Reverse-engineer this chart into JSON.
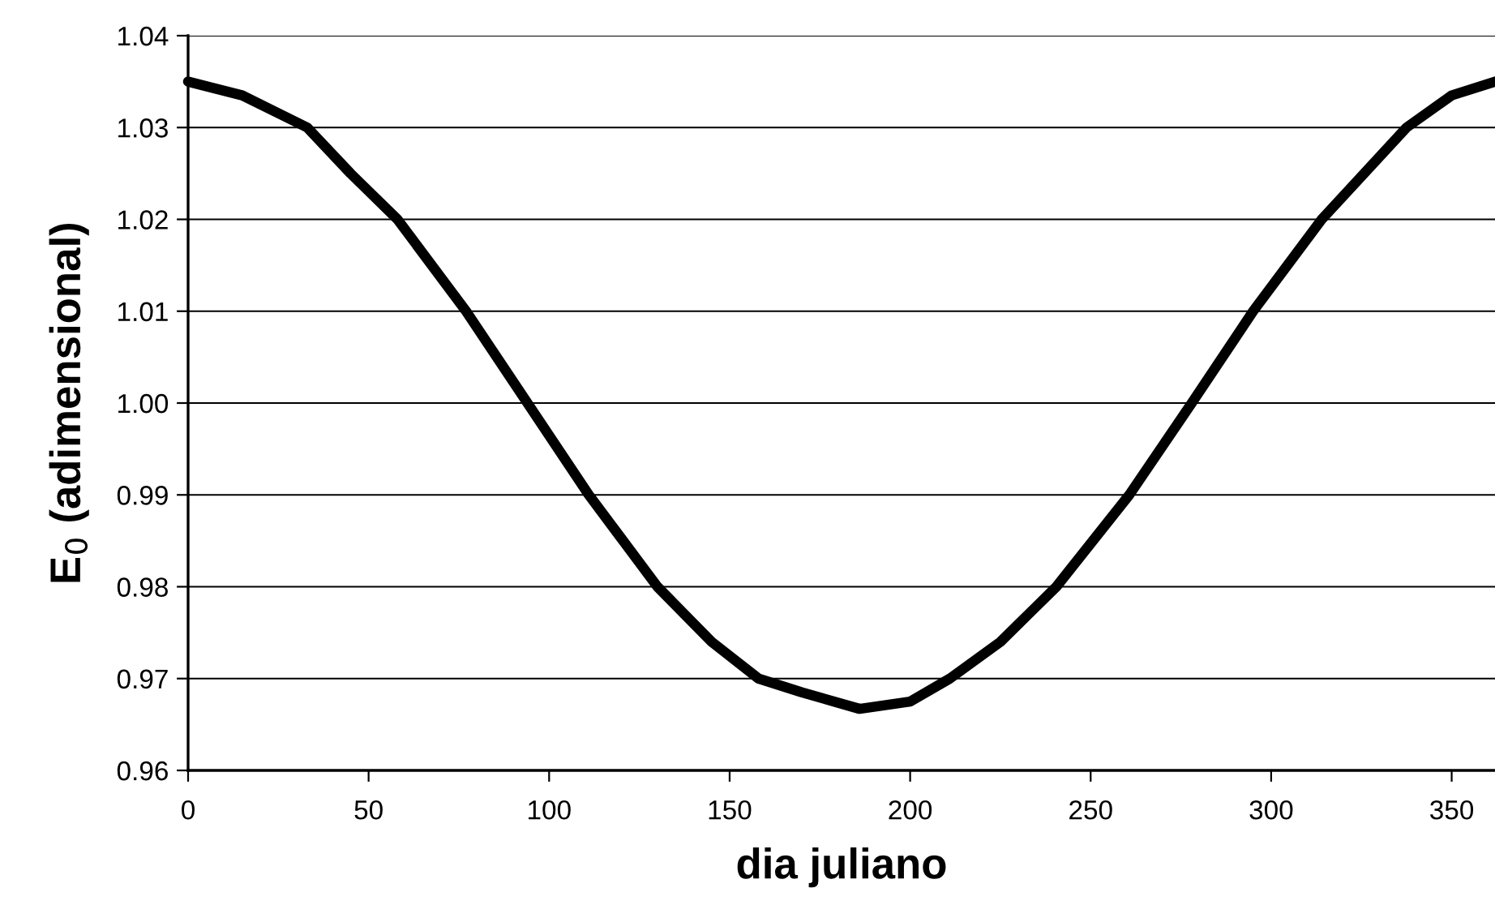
{
  "chart_data": {
    "type": "line",
    "xlabel": "dia juliano",
    "ylabel": "E$_{0}$ (adimensional)",
    "x": [
      0,
      15,
      33,
      45,
      58,
      77,
      94,
      111,
      130,
      145,
      158,
      170,
      186,
      200,
      211,
      225,
      240.5,
      260.7,
      278,
      295,
      314,
      337.5,
      350,
      362
    ],
    "series": [
      {
        "color": "#000000",
        "values": [
          1.035,
          1.0335,
          1.03,
          1.025,
          1.02,
          1.01,
          1.0,
          0.99,
          0.98,
          0.974,
          0.97,
          0.9685,
          0.9667,
          0.9675,
          0.97,
          0.974,
          0.98,
          0.99,
          1.0,
          1.01,
          1.02,
          1.03,
          1.0335,
          1.035
        ]
      }
    ],
    "xlim": [
      0,
      362
    ],
    "ylim": [
      0.96,
      1.04
    ],
    "xticks": [
      0,
      50,
      100,
      150,
      200,
      250,
      300,
      350
    ],
    "yticks": [
      {
        "value": 0.96,
        "label": "0.96"
      },
      {
        "value": 0.97,
        "label": "0.97"
      },
      {
        "value": 0.98,
        "label": "0.98"
      },
      {
        "value": 0.99,
        "label": "0.99"
      },
      {
        "value": 1.0,
        "label": "1.00"
      },
      {
        "value": 1.01,
        "label": "1.01"
      },
      {
        "value": 1.02,
        "label": "1.02"
      },
      {
        "value": 1.03,
        "label": "1.03"
      },
      {
        "value": 1.04,
        "label": "1.04"
      }
    ],
    "grid": "y",
    "marker": "none",
    "line_style": "solid"
  }
}
